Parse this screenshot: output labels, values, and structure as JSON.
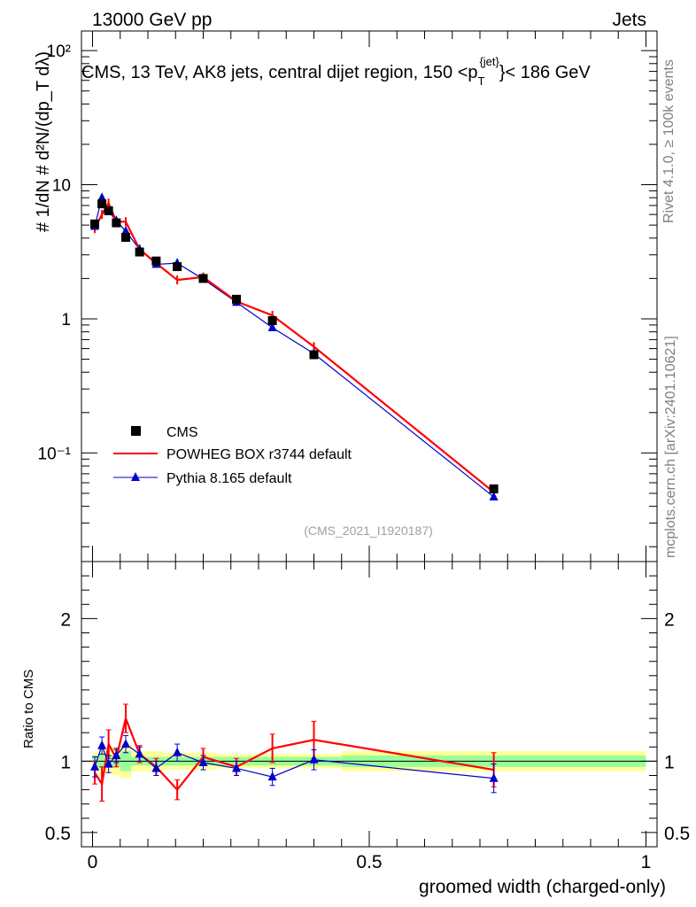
{
  "header": {
    "left": "13000 GeV pp",
    "right": "Jets"
  },
  "side_labels": {
    "rivet": "Rivet 4.1.0, ≥ 100k events",
    "mcplots": "mcplots.cern.ch [arXiv:2401.10621]"
  },
  "chart_data": [
    {
      "type": "scatter",
      "panel": "main",
      "title_parts": {
        "main": "CMS, 13 TeV, AK8 jets, central dijet region, 150 <p",
        "sub": "T",
        "sup": "{jet}",
        "end": "}< 186 GeV"
      },
      "ylabel": "# 1/dN # d²N/(dp_T dλ)",
      "yscale": "log",
      "ylim": [
        0.0155,
        140
      ],
      "xlim": [
        -0.02,
        1.02
      ],
      "y_tick_labels": [
        "10⁻¹",
        "1",
        "10",
        "10²"
      ],
      "y_tick_values": [
        0.1,
        1,
        10,
        100
      ],
      "x": [
        0.004,
        0.017,
        0.029,
        0.043,
        0.06,
        0.085,
        0.115,
        0.153,
        0.2,
        0.26,
        0.325,
        0.4,
        0.725
      ],
      "series": [
        {
          "name": "CMS",
          "color": "#000000",
          "marker": "square",
          "values": [
            5.1,
            7.2,
            6.4,
            5.2,
            4.05,
            3.15,
            2.7,
            2.45,
            2.0,
            1.4,
            0.97,
            0.54,
            0.054
          ]
        },
        {
          "name": "POWHEG BOX r3744 default",
          "color": "#ff0000",
          "marker": "line",
          "values": [
            4.7,
            6.0,
            7.3,
            5.3,
            5.3,
            3.3,
            2.6,
            1.95,
            2.05,
            1.35,
            1.06,
            0.62,
            0.051
          ]
        },
        {
          "name": "Pythia 8.165 default",
          "color": "#0000cc",
          "marker": "triangle",
          "values": [
            4.9,
            8.0,
            6.3,
            5.4,
            4.5,
            3.3,
            2.55,
            2.6,
            1.98,
            1.33,
            0.86,
            0.55,
            0.047
          ]
        }
      ],
      "legend": [
        "CMS",
        "POWHEG BOX r3744 default",
        "Pythia 8.165 default"
      ],
      "legend_position": "bottom-left",
      "annotation": "(CMS_2021_I1920187)"
    },
    {
      "type": "line",
      "panel": "ratio",
      "ylabel": "Ratio to CMS",
      "xlabel": "groomed width (charged-only)",
      "ylim": [
        0.4,
        2.4
      ],
      "xlim": [
        -0.02,
        1.02
      ],
      "y_tick_labels": [
        "0.5",
        "1",
        "2"
      ],
      "y_tick_values": [
        0.5,
        1,
        2
      ],
      "x_tick_labels": [
        "0",
        "0.5",
        "1"
      ],
      "x_tick_values": [
        0,
        0.5,
        1
      ],
      "x": [
        0.004,
        0.017,
        0.029,
        0.043,
        0.06,
        0.085,
        0.115,
        0.153,
        0.2,
        0.26,
        0.325,
        0.4,
        0.725
      ],
      "series": [
        {
          "name": "POWHEG BOX r3744 default",
          "color": "#ff0000",
          "values": [
            0.92,
            0.84,
            1.12,
            1.02,
            1.3,
            1.05,
            0.96,
            0.8,
            1.03,
            0.96,
            1.09,
            1.15,
            0.94
          ],
          "errors": [
            0.08,
            0.12,
            0.1,
            0.06,
            0.1,
            0.06,
            0.06,
            0.07,
            0.06,
            0.06,
            0.1,
            0.13,
            0.12
          ]
        },
        {
          "name": "Pythia 8.165 default",
          "color": "#0000cc",
          "values": [
            0.96,
            1.11,
            0.98,
            1.04,
            1.12,
            1.05,
            0.95,
            1.06,
            0.99,
            0.95,
            0.89,
            1.01,
            0.88
          ],
          "errors": [
            0.07,
            0.06,
            0.06,
            0.05,
            0.06,
            0.05,
            0.05,
            0.06,
            0.05,
            0.05,
            0.06,
            0.07,
            0.1
          ]
        }
      ],
      "bands": {
        "edges": [
          0,
          0.011,
          0.023,
          0.035,
          0.05,
          0.07,
          0.1,
          0.13,
          0.175,
          0.225,
          0.29,
          0.36,
          0.45,
          1.0
        ],
        "stat_lo": [
          0.96,
          0.95,
          0.96,
          0.96,
          0.93,
          0.97,
          0.97,
          0.97,
          0.97,
          0.97,
          0.97,
          0.97,
          0.96
        ],
        "stat_hi": [
          1.04,
          1.05,
          1.04,
          1.04,
          1.07,
          1.03,
          1.03,
          1.03,
          1.03,
          1.03,
          1.03,
          1.03,
          1.04
        ],
        "tot_lo": [
          0.94,
          0.9,
          0.92,
          0.9,
          0.88,
          0.93,
          0.93,
          0.94,
          0.94,
          0.95,
          0.95,
          0.95,
          0.93
        ],
        "tot_hi": [
          1.06,
          1.1,
          1.08,
          1.1,
          1.12,
          1.07,
          1.07,
          1.06,
          1.06,
          1.05,
          1.05,
          1.05,
          1.07
        ],
        "stat_color": "#99ff99",
        "tot_color": "#ffff99"
      }
    }
  ]
}
